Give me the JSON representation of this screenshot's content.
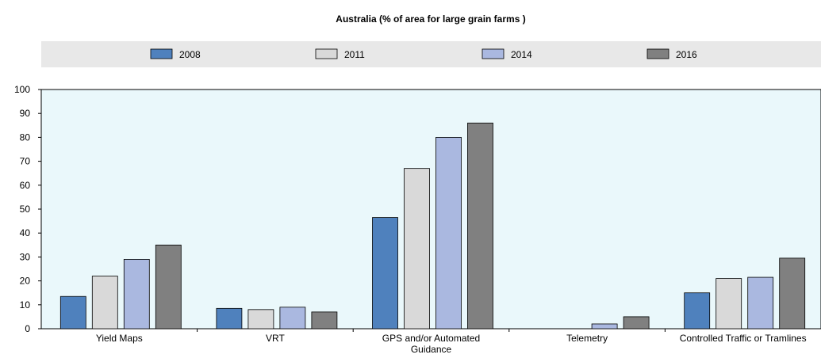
{
  "chart_data": {
    "type": "bar",
    "title": "Australia (% of area for large grain farms )",
    "categories": [
      "Yield Maps",
      "VRT",
      "GPS and/or Automated Guidance",
      "Telemetry",
      "Controlled Traffic or Tramlines"
    ],
    "category_lines": [
      [
        "Yield Maps"
      ],
      [
        "VRT"
      ],
      [
        "GPS and/or Automated",
        "Guidance"
      ],
      [
        "Telemetry"
      ],
      [
        "Controlled Traffic or Tramlines"
      ]
    ],
    "series": [
      {
        "name": "2008",
        "color": "#4f81bd",
        "values": [
          13.5,
          8.5,
          46.5,
          0,
          15
        ]
      },
      {
        "name": "2011",
        "color": "#d9d9d9",
        "values": [
          22,
          8,
          67,
          0,
          21
        ]
      },
      {
        "name": "2014",
        "color": "#aab8e0",
        "values": [
          29,
          9,
          80,
          2,
          21.5
        ]
      },
      {
        "name": "2016",
        "color": "#808080",
        "values": [
          35,
          7,
          86,
          5,
          29.5
        ]
      }
    ],
    "ylim": [
      0,
      100
    ],
    "yticks": [
      0,
      10,
      20,
      30,
      40,
      50,
      60,
      70,
      80,
      90,
      100
    ],
    "xlabel": "",
    "ylabel": "",
    "grid": false,
    "legend_position": "top",
    "colors": {
      "plot_background": "#eaf8fb",
      "legend_background": "#e8e8e8"
    }
  }
}
